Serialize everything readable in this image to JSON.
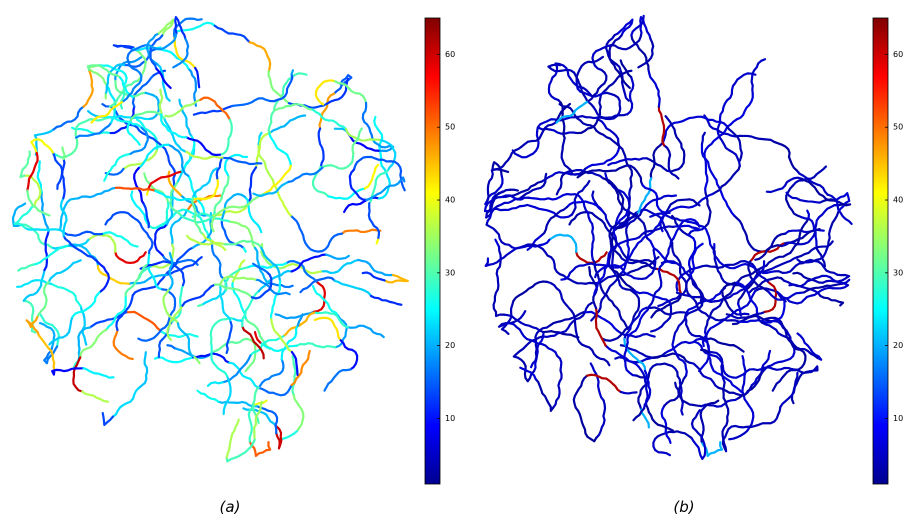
{
  "panels": [
    {
      "caption": "(a)",
      "colorbar": {
        "lim": [
          1,
          65
        ],
        "ticks": [
          10,
          20,
          30,
          40,
          50,
          60
        ]
      }
    },
    {
      "caption": "(b)",
      "colorbar": {
        "lim": [
          1,
          65
        ],
        "ticks": [
          10,
          20,
          30,
          40,
          50,
          60
        ]
      }
    }
  ]
}
